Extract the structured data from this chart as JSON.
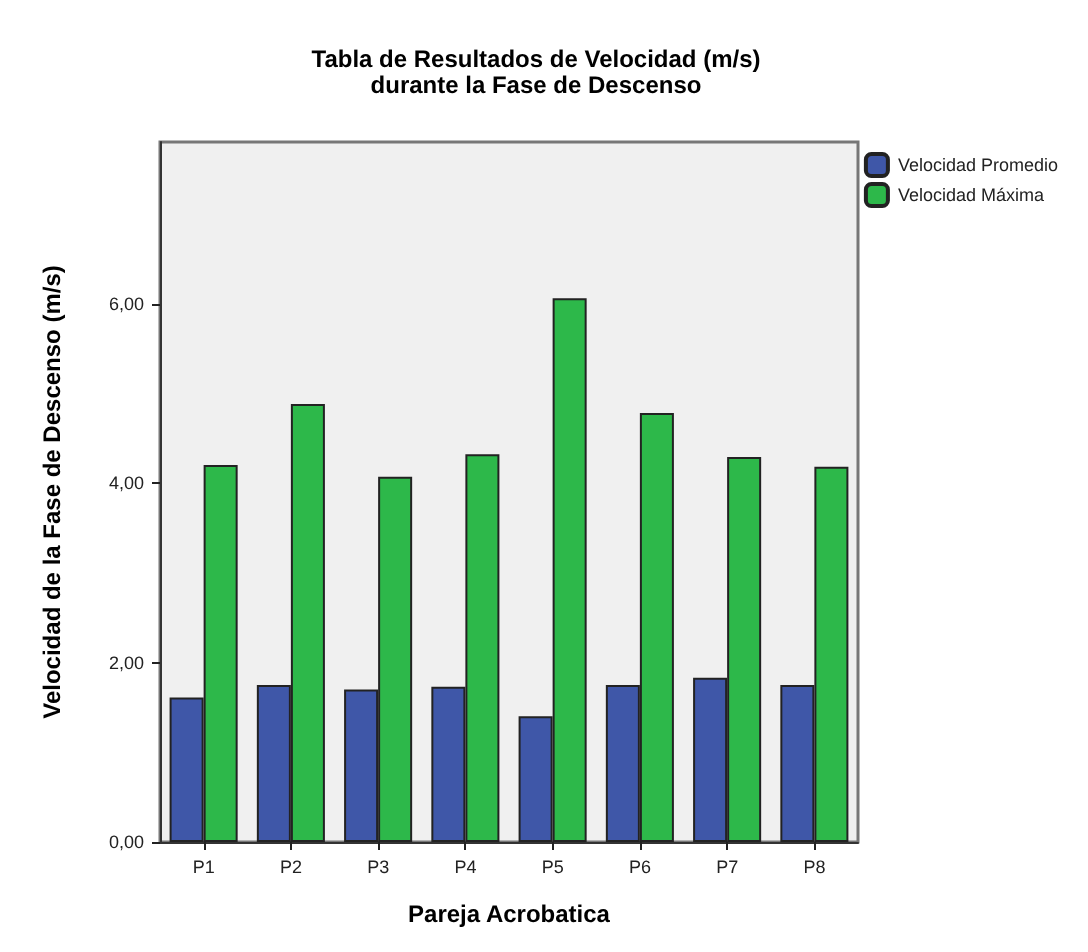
{
  "chart_data": {
    "type": "bar",
    "title": "Tabla de Resultados de Velocidad (m/s)\ndurante la Fase de Descenso",
    "xlabel": "Pareja Acrobatica",
    "ylabel": "Velocidad de la Fase de Descenso (m/s)",
    "categories": [
      "P1",
      "P2",
      "P3",
      "P4",
      "P5",
      "P6",
      "P7",
      "P8"
    ],
    "series": [
      {
        "name": "Velocidad Promedio",
        "color": "#3f57a8",
        "values": [
          1.61,
          1.75,
          1.7,
          1.73,
          1.4,
          1.75,
          1.83,
          1.75
        ]
      },
      {
        "name": "Velocidad Máxima",
        "color": "#2db84a",
        "values": [
          4.2,
          4.88,
          4.07,
          4.32,
          6.06,
          4.78,
          4.29,
          4.18
        ]
      }
    ],
    "ylim": [
      0,
      7.8
    ],
    "yticks": [
      {
        "value": 0,
        "label": "0,00"
      },
      {
        "value": 2,
        "label": "2,00"
      },
      {
        "value": 4,
        "label": "4,00"
      },
      {
        "value": 6,
        "label": "6,00"
      }
    ],
    "grid": false,
    "legend": "top right"
  }
}
